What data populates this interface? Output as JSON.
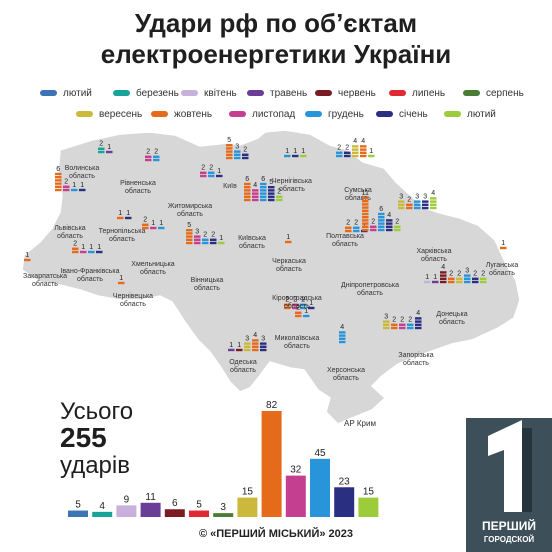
{
  "title_line1": "Удари рф по об’єктам",
  "title_line2": "електроенергетики України",
  "total": {
    "prefix": "Усього",
    "count": "255",
    "suffix": "ударів"
  },
  "map_label_crimea": "АР Крим",
  "footer": "© «ПЕРШИЙ МІСЬКИЙ» 2023",
  "logo": {
    "line1": "ПЕРШИЙ",
    "line2": "ГОРОДСКОЙ"
  },
  "chart_data": {
    "type": "bar",
    "categories": [
      "лютий",
      "березень",
      "квітень",
      "травень",
      "червень",
      "липень",
      "серпень",
      "вересень",
      "жовтень",
      "листопад",
      "грудень",
      "січень",
      "лютий"
    ],
    "colors": [
      "#3d74b8",
      "#18a398",
      "#c8b0dc",
      "#6a3d96",
      "#7a1c24",
      "#e02a33",
      "#4a7c35",
      "#cbb93c",
      "#e56a1a",
      "#c43f8f",
      "#2894da",
      "#2a2f82",
      "#9ccc3a"
    ],
    "values": [
      5,
      4,
      9,
      11,
      6,
      5,
      3,
      15,
      82,
      32,
      45,
      23,
      15
    ],
    "total": 255
  },
  "regions": [
    {
      "name": "Волинська\nобласть",
      "months": [
        1,
        3
      ],
      "values": [
        2,
        1
      ]
    },
    {
      "name": "Рівненська\nобласть",
      "months": [
        9,
        10
      ],
      "values": [
        2,
        2
      ]
    },
    {
      "name": "Житомирська\nобласть",
      "months": [
        9,
        10,
        11
      ],
      "values": [
        2,
        2,
        1
      ]
    },
    {
      "name": "Київ",
      "months": [
        8,
        10,
        11
      ],
      "values": [
        5,
        3,
        2
      ]
    },
    {
      "name": "Чернігівська\nобласть",
      "months": [
        10,
        11,
        12
      ],
      "values": [
        1,
        1,
        1
      ]
    },
    {
      "name": "Сумська\nобласть",
      "months": [
        10,
        11,
        7,
        8,
        12
      ],
      "values": [
        2,
        2,
        4,
        4,
        1
      ]
    },
    {
      "name": "Львівська\nобласть",
      "months": [
        8,
        9,
        10,
        11
      ],
      "values": [
        6,
        2,
        1,
        1
      ]
    },
    {
      "name": "Тернопільська\nобласть",
      "months": [
        8,
        11
      ],
      "values": [
        1,
        1
      ]
    },
    {
      "name": "Хмельницька\nобласть",
      "months": [
        8,
        9,
        10
      ],
      "values": [
        2,
        1,
        1
      ]
    },
    {
      "name": "Київська\nобласть",
      "months": [
        8,
        9,
        10,
        11,
        12
      ],
      "values": [
        6,
        4,
        6,
        5,
        2
      ]
    },
    {
      "name": "Полтавська\nобласть",
      "months": [
        8,
        10,
        11
      ],
      "values": [
        2,
        2,
        1
      ]
    },
    {
      "name": "Харківська\nобласть",
      "months": [
        7,
        8,
        10,
        11,
        12
      ],
      "values": [
        3,
        2,
        3,
        3,
        4
      ]
    },
    {
      "name": "Закарпатська\nобласть",
      "months": [
        8
      ],
      "values": [
        1
      ]
    },
    {
      "name": "Івано-Франківська\nобласть",
      "months": [
        8,
        9,
        10,
        11
      ],
      "values": [
        2,
        1,
        1,
        1
      ]
    },
    {
      "name": "Вінницька\nобласть",
      "months": [
        8,
        9,
        10,
        11,
        12
      ],
      "values": [
        5,
        3,
        2,
        2,
        1
      ]
    },
    {
      "name": "Черкаська\nобласть",
      "months": [
        8
      ],
      "values": [
        1
      ]
    },
    {
      "name": "Дніпропетровська\nобласть",
      "months": [
        8,
        9,
        10,
        11,
        12
      ],
      "values": [
        11,
        2,
        6,
        4,
        2
      ]
    },
    {
      "name": "Луганська\nобласть",
      "months": [
        8
      ],
      "values": [
        1
      ]
    },
    {
      "name": "Чернівецька\nобласть",
      "months": [
        8
      ],
      "values": [
        1
      ]
    },
    {
      "name": "Кіровоградська\nобласть",
      "months": [
        8,
        9,
        10,
        11
      ],
      "values": [
        2,
        2,
        2,
        1
      ]
    },
    {
      "name": "Донецька\nобласть",
      "months": [
        2,
        3,
        4,
        8,
        7,
        10,
        11,
        12
      ],
      "values": [
        1,
        1,
        4,
        2,
        2,
        3,
        2,
        2
      ]
    },
    {
      "name": "Миколаївська\nобласть",
      "months": [
        8,
        10
      ],
      "values": [
        2,
        1
      ]
    },
    {
      "name": "Запорізька\nобласть",
      "months": [
        7,
        8,
        9,
        10,
        11
      ],
      "values": [
        3,
        2,
        2,
        2,
        4
      ]
    },
    {
      "name": "Одеська\nобласть",
      "months": [
        3,
        4,
        7,
        8,
        11
      ],
      "values": [
        1,
        1,
        3,
        4,
        3
      ]
    },
    {
      "name": "Херсонська\nобласть",
      "months": [
        10
      ],
      "values": [
        4
      ]
    }
  ]
}
